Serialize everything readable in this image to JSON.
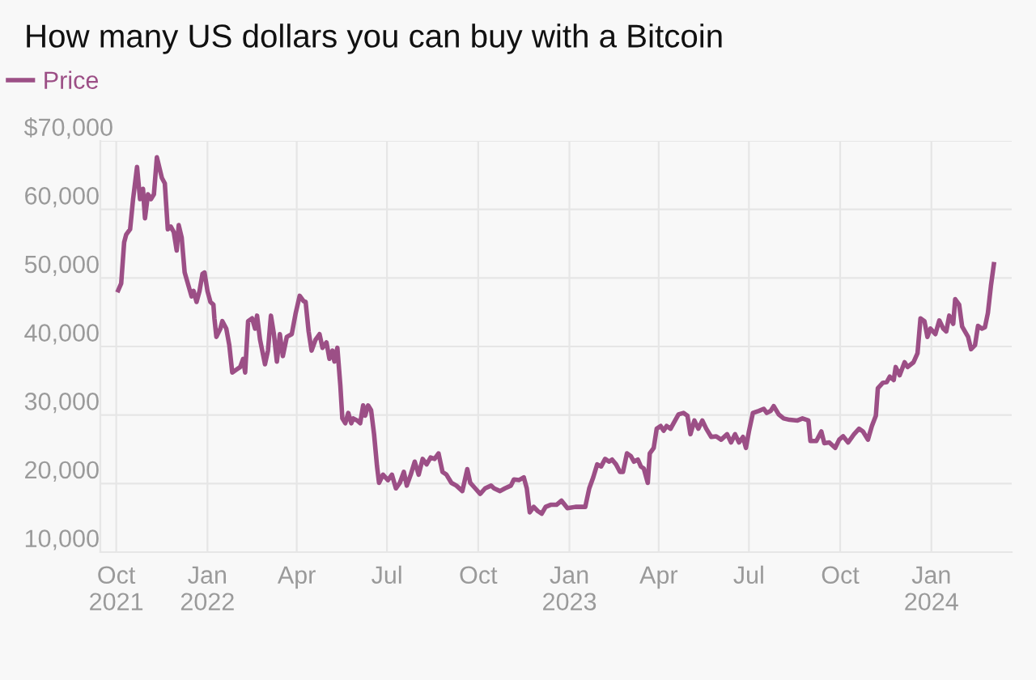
{
  "chart_data": {
    "type": "line",
    "title": "How many US dollars you can buy with a Bitcoin",
    "x": [
      "2021-10-03",
      "2021-10-06",
      "2021-10-09",
      "2021-10-11",
      "2021-10-15",
      "2021-10-18",
      "2021-10-22",
      "2021-10-25",
      "2021-10-28",
      "2021-10-30",
      "2021-11-02",
      "2021-11-05",
      "2021-11-08",
      "2021-11-11",
      "2021-11-16",
      "2021-11-19",
      "2021-11-22",
      "2021-11-25",
      "2021-11-28",
      "2021-12-01",
      "2021-12-03",
      "2021-12-06",
      "2021-12-09",
      "2021-12-13",
      "2021-12-16",
      "2021-12-18",
      "2021-12-21",
      "2021-12-24",
      "2021-12-27",
      "2021-12-29",
      "2022-01-01",
      "2022-01-04",
      "2022-01-07",
      "2022-01-08",
      "2022-01-10",
      "2022-01-14",
      "2022-01-16",
      "2022-01-20",
      "2022-01-23",
      "2022-01-26",
      "2022-01-30",
      "2022-02-03",
      "2022-02-06",
      "2022-02-08",
      "2022-02-11",
      "2022-02-15",
      "2022-02-18",
      "2022-02-20",
      "2022-02-23",
      "2022-02-28",
      "2022-03-03",
      "2022-03-06",
      "2022-03-09",
      "2022-03-12",
      "2022-03-15",
      "2022-03-18",
      "2022-03-22",
      "2022-03-27",
      "2022-03-31",
      "2022-04-04",
      "2022-04-08",
      "2022-04-10",
      "2022-04-13",
      "2022-04-16",
      "2022-04-20",
      "2022-04-24",
      "2022-04-27",
      "2022-05-01",
      "2022-05-04",
      "2022-05-07",
      "2022-05-09",
      "2022-05-12",
      "2022-05-15",
      "2022-05-17",
      "2022-05-20",
      "2022-05-23",
      "2022-05-26",
      "2022-05-28",
      "2022-06-01",
      "2022-06-04",
      "2022-06-07",
      "2022-06-09",
      "2022-06-12",
      "2022-06-15",
      "2022-06-18",
      "2022-06-21",
      "2022-06-23",
      "2022-06-27",
      "2022-07-02",
      "2022-07-06",
      "2022-07-10",
      "2022-07-14",
      "2022-07-18",
      "2022-07-21",
      "2022-07-25",
      "2022-07-29",
      "2022-08-02",
      "2022-08-06",
      "2022-08-10",
      "2022-08-14",
      "2022-08-18",
      "2022-08-22",
      "2022-08-26",
      "2022-08-30",
      "2022-09-04",
      "2022-09-09",
      "2022-09-15",
      "2022-09-20",
      "2022-09-23",
      "2022-09-28",
      "2022-10-03",
      "2022-10-08",
      "2022-10-14",
      "2022-10-17",
      "2022-10-23",
      "2022-10-28",
      "2022-11-03",
      "2022-11-06",
      "2022-11-11",
      "2022-11-16",
      "2022-11-19",
      "2022-11-22",
      "2022-11-26",
      "2022-11-30",
      "2022-12-04",
      "2022-12-08",
      "2022-12-13",
      "2022-12-19",
      "2022-12-24",
      "2022-12-30",
      "2023-01-07",
      "2023-01-14",
      "2023-01-17",
      "2023-01-18",
      "2023-01-21",
      "2023-01-25",
      "2023-01-29",
      "2023-02-02",
      "2023-02-06",
      "2023-02-10",
      "2023-02-13",
      "2023-02-17",
      "2023-02-21",
      "2023-02-24",
      "2023-02-28",
      "2023-03-04",
      "2023-03-07",
      "2023-03-11",
      "2023-03-14",
      "2023-03-17",
      "2023-03-21",
      "2023-03-23",
      "2023-03-27",
      "2023-03-30",
      "2023-04-03",
      "2023-04-06",
      "2023-04-09",
      "2023-04-13",
      "2023-04-16",
      "2023-04-21",
      "2023-04-26",
      "2023-04-30",
      "2023-05-03",
      "2023-05-07",
      "2023-05-11",
      "2023-05-15",
      "2023-05-19",
      "2023-05-24",
      "2023-05-29",
      "2023-06-03",
      "2023-06-09",
      "2023-06-13",
      "2023-06-17",
      "2023-06-21",
      "2023-06-25",
      "2023-06-28",
      "2023-07-01",
      "2023-07-05",
      "2023-07-11",
      "2023-07-16",
      "2023-07-19",
      "2023-07-23",
      "2023-07-26",
      "2023-07-31",
      "2023-08-05",
      "2023-08-11",
      "2023-08-19",
      "2023-08-24",
      "2023-08-30",
      "2023-09-01",
      "2023-09-07",
      "2023-09-12",
      "2023-09-15",
      "2023-09-20",
      "2023-09-26",
      "2023-09-30",
      "2023-10-04",
      "2023-10-09",
      "2023-10-15",
      "2023-10-20",
      "2023-10-24",
      "2023-10-29",
      "2023-11-02",
      "2023-11-06",
      "2023-11-08",
      "2023-11-13",
      "2023-11-17",
      "2023-11-20",
      "2023-11-24",
      "2023-11-26",
      "2023-11-30",
      "2023-12-05",
      "2023-12-08",
      "2023-12-14",
      "2023-12-18",
      "2023-12-21",
      "2023-12-25",
      "2023-12-28",
      "2023-12-31",
      "2024-01-05",
      "2024-01-09",
      "2024-01-13",
      "2024-01-16",
      "2024-01-19",
      "2024-01-23",
      "2024-01-25",
      "2024-01-29",
      "2024-02-01",
      "2024-02-07",
      "2024-02-10",
      "2024-02-14",
      "2024-02-17",
      "2024-02-21",
      "2024-02-24",
      "2024-02-27",
      "2024-03-01",
      "2024-03-04"
    ],
    "series": [
      {
        "name": "Price",
        "color": "#9c4f86",
        "values": [
          48200,
          49200,
          55200,
          56300,
          57100,
          61500,
          66200,
          61500,
          63000,
          58700,
          62200,
          61500,
          62200,
          67600,
          64600,
          63800,
          57100,
          57500,
          56700,
          54000,
          57700,
          55900,
          50800,
          48800,
          47300,
          48100,
          46500,
          48100,
          50600,
          50800,
          48100,
          46500,
          46100,
          44100,
          41400,
          42600,
          43700,
          42600,
          40200,
          36200,
          36600,
          37000,
          38200,
          36200,
          43700,
          44100,
          42600,
          44500,
          41000,
          37400,
          39400,
          44500,
          41800,
          37800,
          41800,
          38600,
          41400,
          41800,
          44900,
          47400,
          46600,
          46500,
          42200,
          39400,
          41000,
          41800,
          39800,
          40600,
          38200,
          39400,
          37800,
          39800,
          34300,
          29500,
          28800,
          30300,
          28800,
          29500,
          29200,
          28800,
          31400,
          29900,
          31400,
          30700,
          27200,
          22500,
          20100,
          21300,
          20500,
          21300,
          19300,
          20100,
          21700,
          19700,
          21300,
          23200,
          21300,
          23600,
          22800,
          23800,
          23600,
          24400,
          21700,
          21300,
          20100,
          19700,
          18900,
          22100,
          20100,
          19300,
          18500,
          19300,
          19700,
          19300,
          18900,
          19300,
          19700,
          20600,
          20500,
          20900,
          19300,
          15800,
          16600,
          16000,
          15600,
          16600,
          16900,
          16900,
          17500,
          16400,
          16600,
          16600,
          16600,
          17300,
          19300,
          20900,
          22800,
          22500,
          23600,
          23200,
          23500,
          22800,
          21700,
          21700,
          24400,
          24000,
          23200,
          23500,
          22500,
          22200,
          20100,
          24400,
          25200,
          28000,
          28400,
          27700,
          28400,
          28000,
          28800,
          30100,
          30300,
          29900,
          27200,
          29200,
          28000,
          29200,
          28000,
          26800,
          26900,
          26400,
          27200,
          26000,
          27200,
          26000,
          26800,
          25200,
          27600,
          30300,
          30600,
          30900,
          30300,
          30600,
          31300,
          30100,
          29500,
          29300,
          29200,
          29500,
          29200,
          26200,
          26200,
          27600,
          25900,
          26000,
          25200,
          26400,
          26900,
          26000,
          27200,
          28000,
          27600,
          26400,
          28400,
          29900,
          33900,
          34700,
          34800,
          35600,
          35100,
          37000,
          35800,
          37700,
          37000,
          37700,
          39000,
          44100,
          43700,
          41400,
          42600,
          41800,
          43800,
          42600,
          42200,
          44500,
          43300,
          46900,
          46100,
          42900,
          41400,
          39600,
          40200,
          43000,
          42600,
          42800,
          44900,
          48800,
          52000
        ]
      }
    ],
    "xlim": [
      "2021-09-15",
      "2024-03-22"
    ],
    "xticks": [
      {
        "value": "2021-10-01",
        "label": "Oct\n2021"
      },
      {
        "value": "2022-01-01",
        "label": "Jan\n2022"
      },
      {
        "value": "2022-04-01",
        "label": "Apr"
      },
      {
        "value": "2022-07-01",
        "label": "Jul"
      },
      {
        "value": "2022-10-01",
        "label": "Oct"
      },
      {
        "value": "2023-01-01",
        "label": "Jan\n2023"
      },
      {
        "value": "2023-04-01",
        "label": "Apr"
      },
      {
        "value": "2023-07-01",
        "label": "Jul"
      },
      {
        "value": "2023-10-01",
        "label": "Oct"
      },
      {
        "value": "2024-01-01",
        "label": "Jan\n2024"
      }
    ],
    "ylim": [
      10000,
      70000
    ],
    "yticks": [
      {
        "value": 10000,
        "label": "10,000"
      },
      {
        "value": 20000,
        "label": "20,000"
      },
      {
        "value": 30000,
        "label": "30,000"
      },
      {
        "value": 40000,
        "label": "40,000"
      },
      {
        "value": 50000,
        "label": "50,000"
      },
      {
        "value": 60000,
        "label": "60,000"
      },
      {
        "value": 70000,
        "label": "$70,000"
      }
    ],
    "grid": true,
    "legend": "top left",
    "marker": "none",
    "line_style": "solid"
  }
}
